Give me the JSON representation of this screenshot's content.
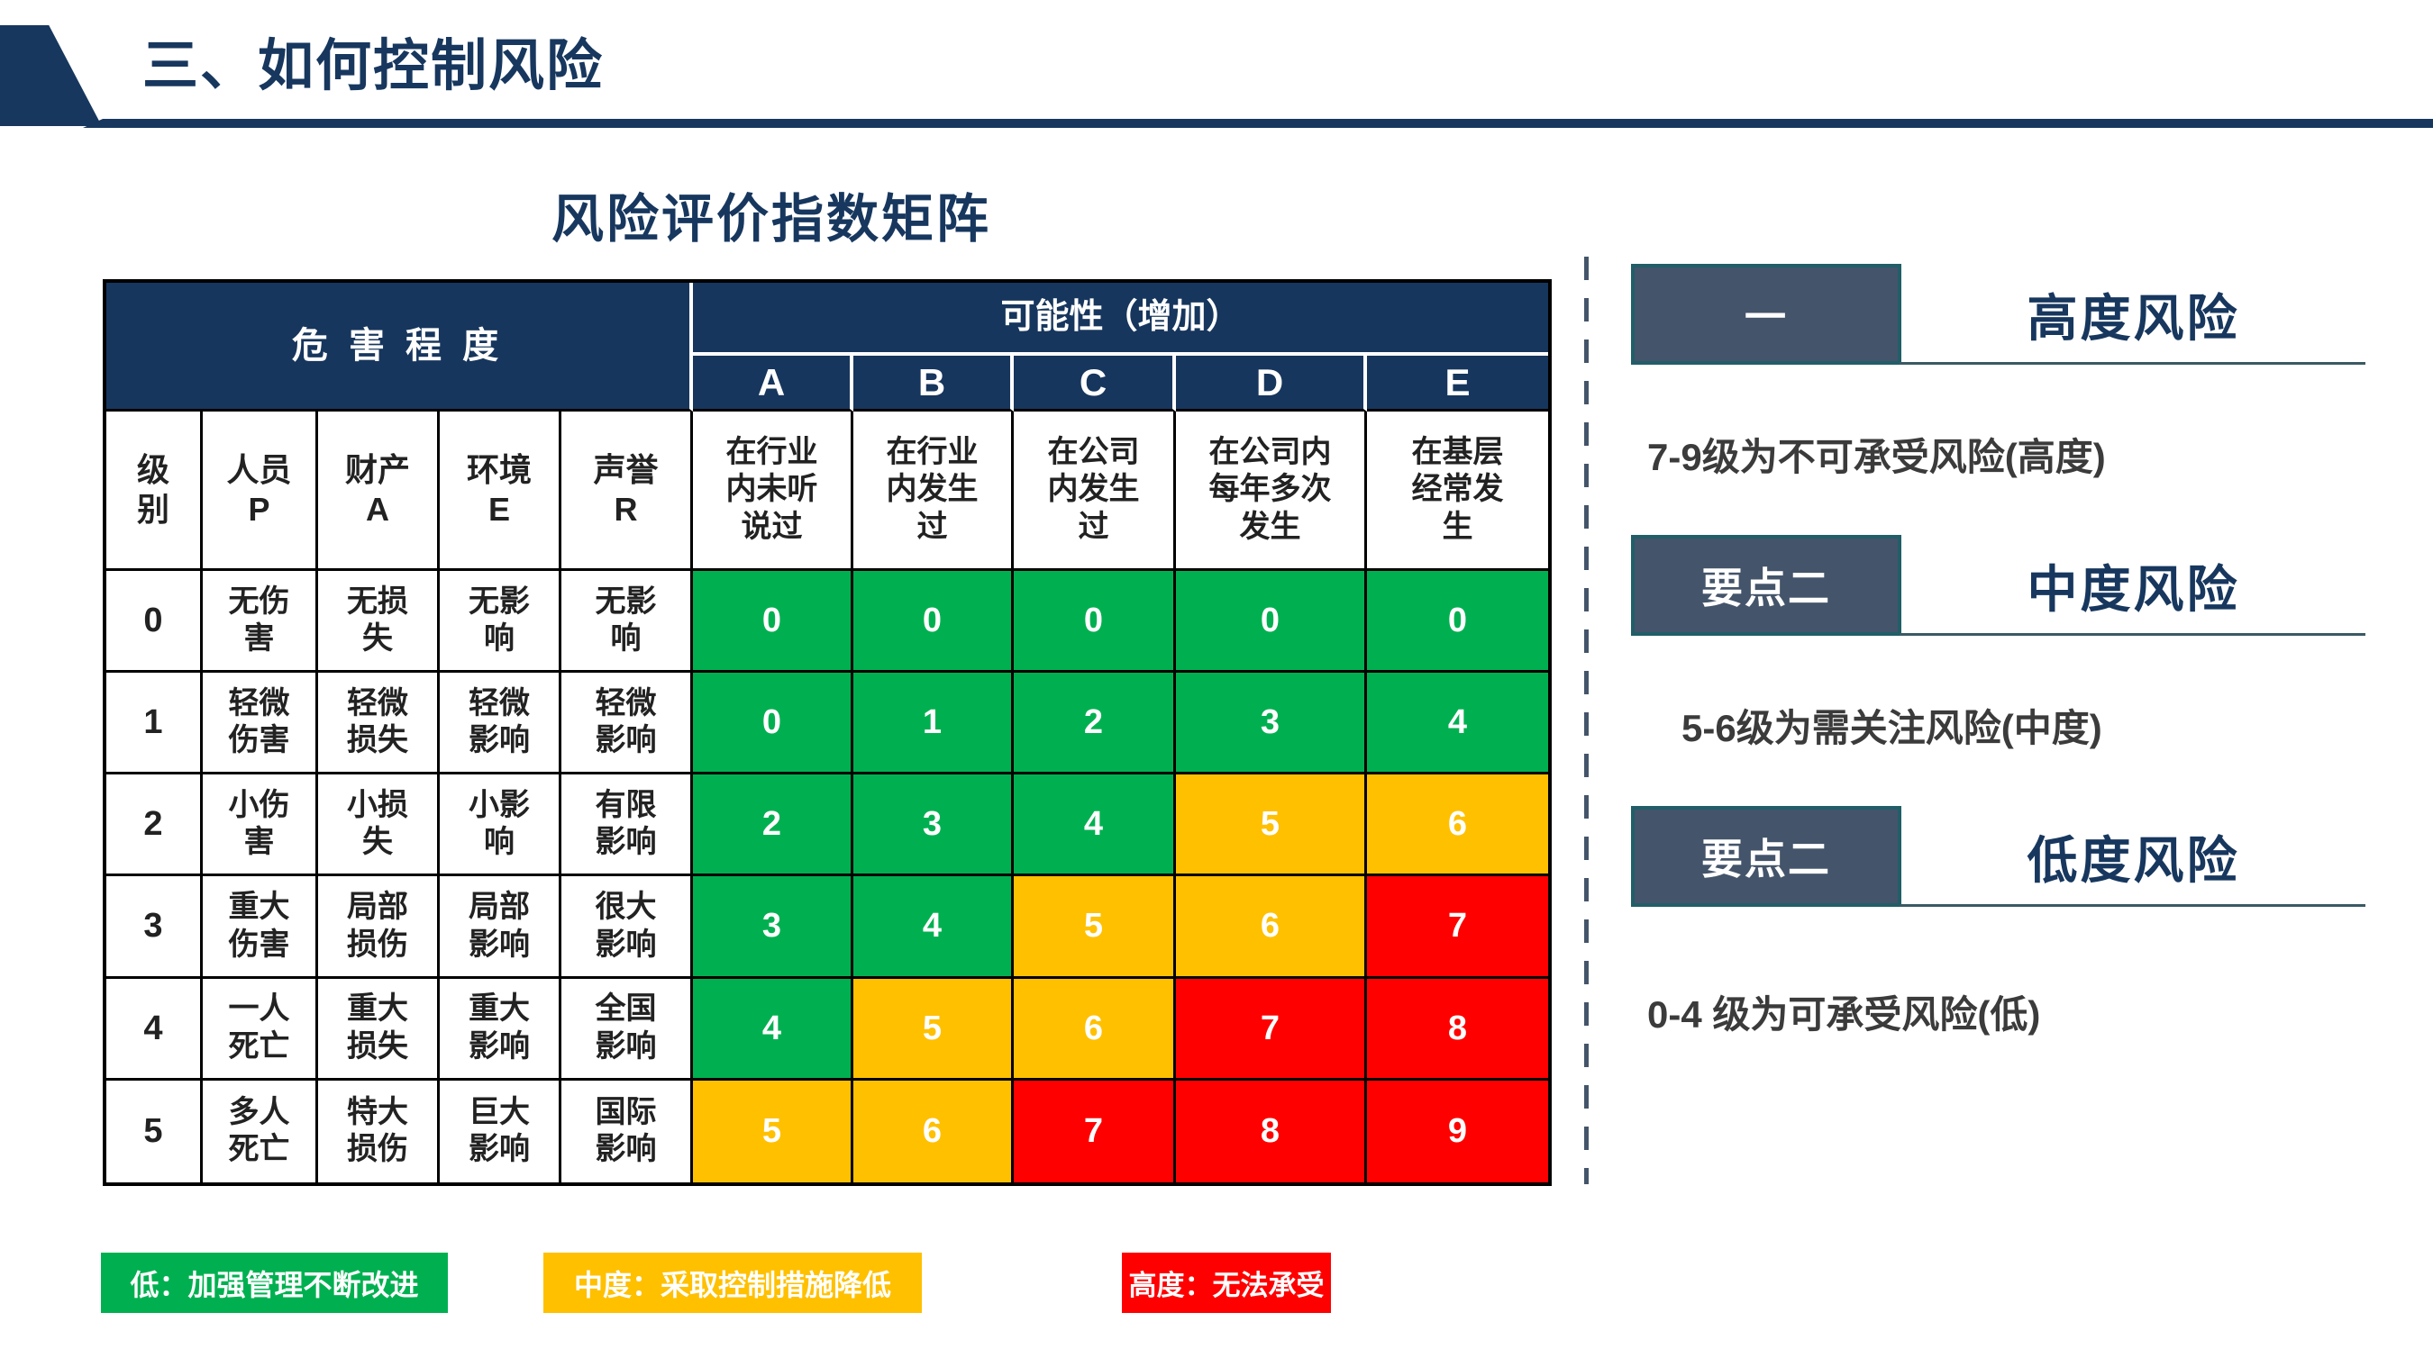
{
  "header": {
    "title": "三、如何控制风险",
    "accent_color": "#17375e"
  },
  "subtitle": "风险评价指数矩阵",
  "table": {
    "harm_header": "危 害 程 度",
    "likelihood_header": "可能性（增加）",
    "harm_cols": [
      "级\n别",
      "人员\nP",
      "财产\nA",
      "环境\nE",
      "声誉\nR"
    ],
    "likelihood_cols": [
      {
        "key": "A",
        "desc": "在行业\n内未听\n说过"
      },
      {
        "key": "B",
        "desc": "在行业\n内发生\n过"
      },
      {
        "key": "C",
        "desc": "在公司\n内发生\n过"
      },
      {
        "key": "D",
        "desc": "在公司内\n每年多次\n发生"
      },
      {
        "key": "E",
        "desc": "在基层\n经常发\n生"
      }
    ],
    "rows": [
      {
        "level": "0",
        "harms": [
          "无伤\n害",
          "无损\n失",
          "无影\n响",
          "无影\n响"
        ],
        "values": [
          "0",
          "0",
          "0",
          "0",
          "0"
        ],
        "colors": [
          "green",
          "green",
          "green",
          "green",
          "green"
        ]
      },
      {
        "level": "1",
        "harms": [
          "轻微\n伤害",
          "轻微\n损失",
          "轻微\n影响",
          "轻微\n影响"
        ],
        "values": [
          "0",
          "1",
          "2",
          "3",
          "4"
        ],
        "colors": [
          "green",
          "green",
          "green",
          "green",
          "green"
        ]
      },
      {
        "level": "2",
        "harms": [
          "小伤\n害",
          "小损\n失",
          "小影\n响",
          "有限\n影响"
        ],
        "values": [
          "2",
          "3",
          "4",
          "5",
          "6"
        ],
        "colors": [
          "green",
          "green",
          "green",
          "yellow",
          "yellow"
        ]
      },
      {
        "level": "3",
        "harms": [
          "重大\n伤害",
          "局部\n损伤",
          "局部\n影响",
          "很大\n影响"
        ],
        "values": [
          "3",
          "4",
          "5",
          "6",
          "7"
        ],
        "colors": [
          "green",
          "green",
          "yellow",
          "yellow",
          "red"
        ]
      },
      {
        "level": "4",
        "harms": [
          "一人\n死亡",
          "重大\n损失",
          "重大\n影响",
          "全国\n影响"
        ],
        "values": [
          "4",
          "5",
          "6",
          "7",
          "8"
        ],
        "colors": [
          "green",
          "yellow",
          "yellow",
          "red",
          "red"
        ]
      },
      {
        "level": "5",
        "harms": [
          "多人\n死亡",
          "特大\n损伤",
          "巨大\n影响",
          "国际\n影响"
        ],
        "values": [
          "5",
          "6",
          "7",
          "8",
          "9"
        ],
        "colors": [
          "yellow",
          "yellow",
          "red",
          "red",
          "red"
        ]
      }
    ],
    "risk_colors": {
      "green": "#00B050",
      "yellow": "#FFC000",
      "red": "#FF0000"
    }
  },
  "legend": [
    {
      "label": "低：加强管理不断改进",
      "color": "#00B050"
    },
    {
      "label": "中度：采取控制措施降低",
      "color": "#FFC000"
    },
    {
      "label": "高度：无法承受",
      "color": "#FF0000"
    }
  ],
  "panel": {
    "items": [
      {
        "badge": "一",
        "title": "高度风险",
        "desc": "7-9级为不可承受风险(高度)"
      },
      {
        "badge": "要点二",
        "title": "中度风险",
        "desc": "5-6级为需关注风险(中度)"
      },
      {
        "badge": "要点二",
        "title": "低度风险",
        "desc": "0-4 级为可承受风险(低)"
      }
    ]
  }
}
